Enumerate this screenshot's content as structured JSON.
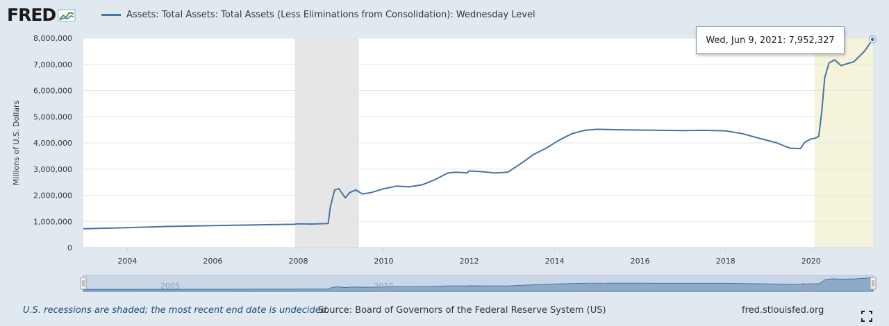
{
  "header": {
    "logo_text": "FRED",
    "legend_label": "Assets: Total Assets: Total Assets (Less Eliminations from Consolidation): Wednesday Level"
  },
  "tooltip": {
    "date": "Wed, Jun 9, 2021:",
    "value": "7,952,327"
  },
  "navigator": {
    "labels": [
      "2005",
      "2010",
      "2015",
      "2020"
    ]
  },
  "footer": {
    "note": "U.S. recessions are shaded; the most recent end date is undecided.",
    "source": "Source: Board of Governors of the Federal Reserve System (US)",
    "site": "fred.stlouisfed.org"
  },
  "colors": {
    "line": "#4572a7",
    "background": "#e1e9f0",
    "recession": "#e6e6e6",
    "recent_recession": "#f5f3d9"
  },
  "chart_data": {
    "type": "line",
    "title": "Assets: Total Assets: Total Assets (Less Eliminations from Consolidation): Wednesday Level",
    "xlabel": "",
    "ylabel": "Millions of U.S. Dollars",
    "xlim": [
      2002.97,
      2021.45
    ],
    "ylim": [
      0,
      8000000
    ],
    "x_ticks": [
      2004,
      2006,
      2008,
      2010,
      2012,
      2014,
      2016,
      2018,
      2020
    ],
    "y_ticks": [
      0,
      1000000,
      2000000,
      3000000,
      4000000,
      5000000,
      6000000,
      7000000,
      8000000
    ],
    "y_tick_labels": [
      "0",
      "1,000,000",
      "2,000,000",
      "3,000,000",
      "4,000,000",
      "5,000,000",
      "6,000,000",
      "7,000,000",
      "8,000,000"
    ],
    "x_tick_labels": [
      "2004",
      "2006",
      "2008",
      "2010",
      "2012",
      "2014",
      "2016",
      "2018",
      "2020"
    ],
    "recessions": [
      {
        "start": 2007.92,
        "end": 2009.42,
        "color": "#e6e6e6"
      },
      {
        "start": 2020.08,
        "end": 2021.45,
        "color": "#f5f3d9"
      }
    ],
    "series": [
      {
        "name": "Assets: Total Assets: Total Assets (Less Eliminations from Consolidation): Wednesday Level",
        "x": [
          2002.97,
          2004.0,
          2005.0,
          2006.0,
          2007.0,
          2007.9,
          2008.0,
          2008.3,
          2008.7,
          2008.75,
          2008.85,
          2008.95,
          2009.1,
          2009.2,
          2009.35,
          2009.5,
          2009.7,
          2010.0,
          2010.3,
          2010.6,
          2010.9,
          2011.2,
          2011.5,
          2011.7,
          2011.95,
          2012.0,
          2012.3,
          2012.6,
          2012.9,
          2013.2,
          2013.5,
          2013.8,
          2014.1,
          2014.4,
          2014.7,
          2015.0,
          2015.5,
          2016.0,
          2016.5,
          2017.0,
          2017.5,
          2018.0,
          2018.4,
          2018.8,
          2019.2,
          2019.5,
          2019.75,
          2019.85,
          2020.0,
          2020.1,
          2020.18,
          2020.25,
          2020.32,
          2020.42,
          2020.55,
          2020.7,
          2021.0,
          2021.25,
          2021.44
        ],
        "values": [
          720000,
          760000,
          810000,
          840000,
          870000,
          890000,
          910000,
          900000,
          920000,
          1550000,
          2200000,
          2250000,
          1900000,
          2100000,
          2200000,
          2050000,
          2100000,
          2250000,
          2350000,
          2320000,
          2400000,
          2600000,
          2850000,
          2880000,
          2850000,
          2930000,
          2900000,
          2850000,
          2880000,
          3200000,
          3550000,
          3800000,
          4100000,
          4350000,
          4480000,
          4520000,
          4500000,
          4490000,
          4480000,
          4470000,
          4480000,
          4460000,
          4350000,
          4170000,
          4000000,
          3800000,
          3780000,
          4020000,
          4150000,
          4180000,
          4250000,
          5200000,
          6500000,
          7050000,
          7170000,
          6950000,
          7100000,
          7500000,
          7952327
        ]
      }
    ]
  }
}
